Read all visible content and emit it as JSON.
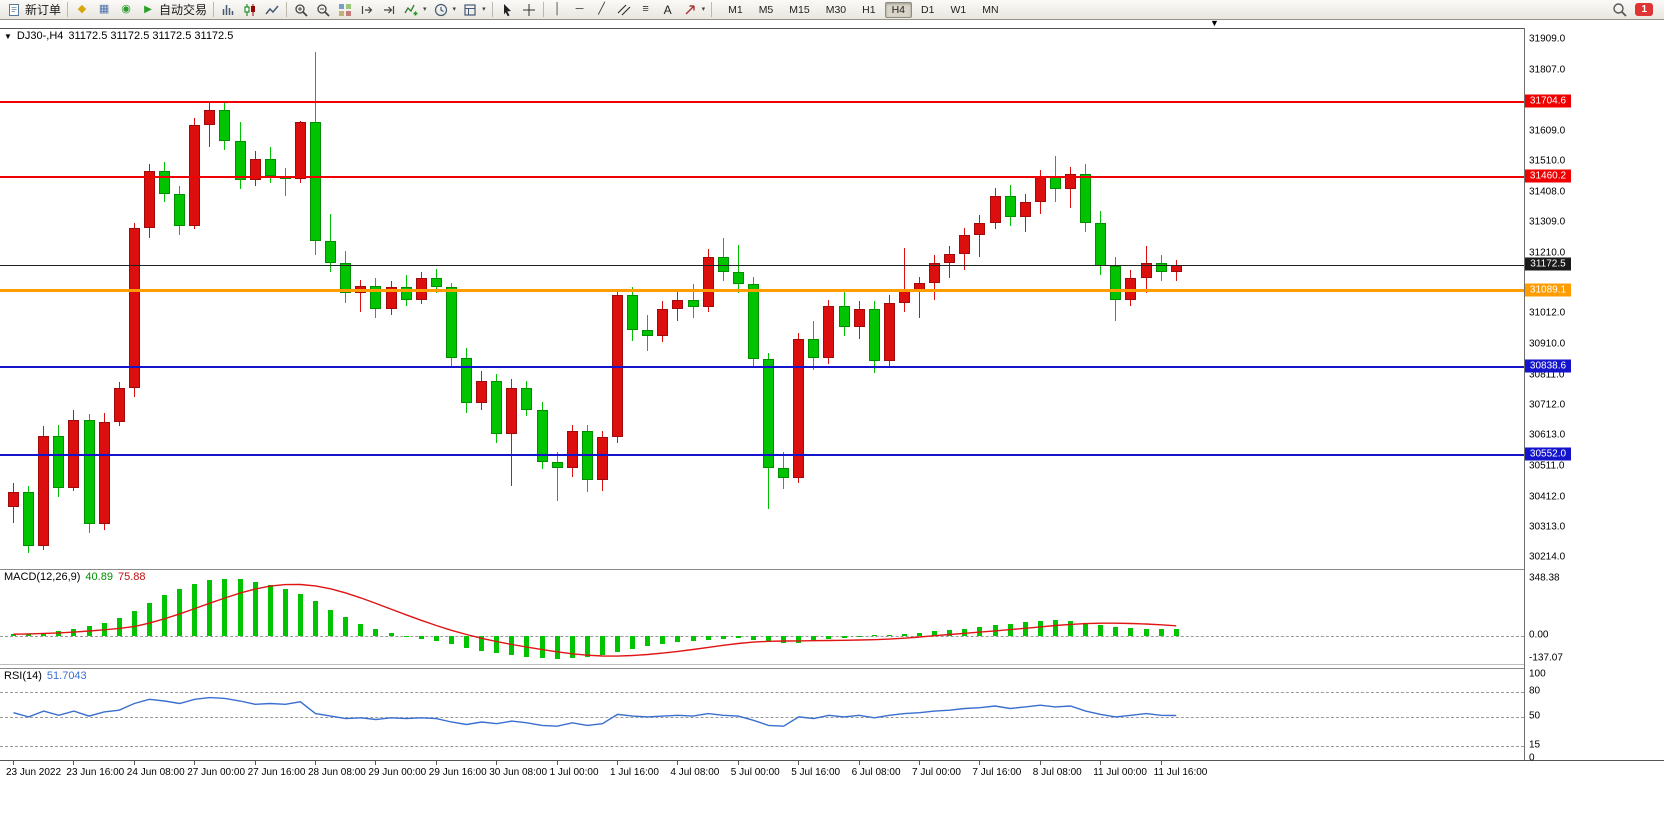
{
  "toolbar": {
    "new_order_label": "新订单",
    "autotrading_label": "自动交易",
    "timeframes": [
      "M1",
      "M5",
      "M15",
      "M30",
      "H1",
      "H4",
      "D1",
      "W1",
      "MN"
    ],
    "active_timeframe": "H4",
    "notification_count": "1"
  },
  "icons": {
    "title_marker": "▼",
    "shift_marker": "▼",
    "caret": "▾",
    "market_watch": "◆",
    "data_window": "▦",
    "navigator": "◉",
    "autotrading_play": "▶",
    "vline": "│",
    "hline": "─",
    "trendline": "╱",
    "fibonacci": "≡",
    "text_tool": "A"
  },
  "chart": {
    "title_symbol": "DJ30-,H4",
    "title_ohlc": "31172.5 31172.5 31172.5 31172.5"
  },
  "indicators": {
    "macd_name": "MACD(12,26,9)",
    "macd_main": "40.89",
    "macd_signal": "75.88",
    "rsi_name": "RSI(14)",
    "rsi_value": "51.7043"
  },
  "chart_data": {
    "type": "candlestick",
    "title": "DJ30-,H4",
    "symbol": "DJ30-",
    "timeframe": "H4",
    "up_color": "#dd0e0e",
    "down_color": "#00c400",
    "view_range": [
      30185,
      31945
    ],
    "price_ticks": [
      31909.0,
      31807.0,
      31609.0,
      31510.0,
      31408.0,
      31309.0,
      31210.0,
      31012.0,
      30910.0,
      30811.0,
      30712.0,
      30613.0,
      30511.0,
      30412.0,
      30313.0,
      30214.0
    ],
    "levels": [
      {
        "price": 31704.6,
        "color": "#f00000",
        "tag_bg": "#f00000",
        "thickness": 2
      },
      {
        "price": 31460.2,
        "color": "#f00000",
        "tag_bg": "#f00000",
        "thickness": 2
      },
      {
        "price": 31089.1,
        "color": "#ff9c00",
        "tag_bg": "#ff9c00",
        "thickness": 3
      },
      {
        "price": 30838.6,
        "color": "#1414cd",
        "tag_bg": "#1414cd",
        "thickness": 2
      },
      {
        "price": 30552.0,
        "color": "#1414cd",
        "tag_bg": "#1414cd",
        "thickness": 2
      }
    ],
    "current_price": {
      "price": 31172.5,
      "color": "#222222",
      "tag_bg": "#1a1a1a"
    },
    "candles": [
      [
        30380,
        30460,
        30330,
        30430
      ],
      [
        30430,
        30450,
        30230,
        30255
      ],
      [
        30255,
        30645,
        30240,
        30615
      ],
      [
        30615,
        30650,
        30415,
        30445
      ],
      [
        30445,
        30700,
        30435,
        30665
      ],
      [
        30665,
        30685,
        30295,
        30325
      ],
      [
        30325,
        30690,
        30305,
        30660
      ],
      [
        30660,
        30790,
        30645,
        30770
      ],
      [
        30770,
        31310,
        30740,
        31295
      ],
      [
        31295,
        31505,
        31260,
        31480
      ],
      [
        31480,
        31510,
        31380,
        31405
      ],
      [
        31405,
        31430,
        31270,
        31300
      ],
      [
        31300,
        31655,
        31290,
        31630
      ],
      [
        31630,
        31705,
        31560,
        31680
      ],
      [
        31680,
        31710,
        31550,
        31580
      ],
      [
        31580,
        31640,
        31420,
        31450
      ],
      [
        31450,
        31545,
        31430,
        31520
      ],
      [
        31520,
        31560,
        31440,
        31465
      ],
      [
        31465,
        31490,
        31400,
        31455
      ],
      [
        31455,
        31645,
        31440,
        31640
      ],
      [
        31640,
        31870,
        31205,
        31250
      ],
      [
        31250,
        31340,
        31150,
        31180
      ],
      [
        31180,
        31220,
        31050,
        31080
      ],
      [
        31080,
        31125,
        31020,
        31105
      ],
      [
        31105,
        31130,
        31000,
        31030
      ],
      [
        31030,
        31120,
        31010,
        31100
      ],
      [
        31100,
        31140,
        31040,
        31060
      ],
      [
        31060,
        31150,
        31045,
        31130
      ],
      [
        31130,
        31160,
        31080,
        31100
      ],
      [
        31100,
        31115,
        30840,
        30870
      ],
      [
        30870,
        30900,
        30690,
        30720
      ],
      [
        30720,
        30825,
        30700,
        30795
      ],
      [
        30795,
        30815,
        30590,
        30620
      ],
      [
        30620,
        30800,
        30450,
        30770
      ],
      [
        30770,
        30795,
        30680,
        30700
      ],
      [
        30700,
        30725,
        30505,
        30530
      ],
      [
        30530,
        30560,
        30400,
        30510
      ],
      [
        30510,
        30650,
        30480,
        30630
      ],
      [
        30630,
        30650,
        30430,
        30470
      ],
      [
        30470,
        30630,
        30435,
        30610
      ],
      [
        30610,
        31095,
        30590,
        31075
      ],
      [
        31075,
        31100,
        30925,
        30960
      ],
      [
        30960,
        31010,
        30890,
        30940
      ],
      [
        30940,
        31055,
        30920,
        31030
      ],
      [
        31030,
        31085,
        30990,
        31060
      ],
      [
        31060,
        31110,
        31000,
        31035
      ],
      [
        31035,
        31225,
        31020,
        31200
      ],
      [
        31200,
        31260,
        31120,
        31150
      ],
      [
        31150,
        31240,
        31080,
        31110
      ],
      [
        31110,
        31135,
        30840,
        30865
      ],
      [
        30865,
        30885,
        30375,
        30510
      ],
      [
        30510,
        30560,
        30440,
        30475
      ],
      [
        30475,
        30950,
        30460,
        30930
      ],
      [
        30930,
        30990,
        30830,
        30870
      ],
      [
        30870,
        31060,
        30850,
        31040
      ],
      [
        31040,
        31085,
        30940,
        30970
      ],
      [
        30970,
        31055,
        30930,
        31030
      ],
      [
        31030,
        31055,
        30820,
        30860
      ],
      [
        30860,
        31075,
        30840,
        31050
      ],
      [
        31050,
        31230,
        31020,
        31090
      ],
      [
        31090,
        31135,
        31000,
        31115
      ],
      [
        31115,
        31205,
        31060,
        31180
      ],
      [
        31180,
        31235,
        31130,
        31210
      ],
      [
        31210,
        31295,
        31155,
        31270
      ],
      [
        31270,
        31335,
        31200,
        31310
      ],
      [
        31310,
        31425,
        31290,
        31400
      ],
      [
        31400,
        31435,
        31300,
        31330
      ],
      [
        31330,
        31405,
        31280,
        31380
      ],
      [
        31380,
        31485,
        31340,
        31460
      ],
      [
        31460,
        31530,
        31380,
        31420
      ],
      [
        31420,
        31495,
        31360,
        31470
      ],
      [
        31470,
        31505,
        31280,
        31310
      ],
      [
        31310,
        31350,
        31140,
        31170
      ],
      [
        31170,
        31200,
        30990,
        31060
      ],
      [
        31060,
        31155,
        31040,
        31130
      ],
      [
        31130,
        31235,
        31080,
        31180
      ],
      [
        31180,
        31205,
        31120,
        31150
      ],
      [
        31150,
        31190,
        31120,
        31172.5
      ]
    ],
    "time_labels": [
      {
        "i": 0,
        "t": "23 Jun 2022"
      },
      {
        "i": 4,
        "t": "23 Jun 16:00"
      },
      {
        "i": 8,
        "t": "24 Jun 08:00"
      },
      {
        "i": 12,
        "t": "27 Jun 00:00"
      },
      {
        "i": 16,
        "t": "27 Jun 16:00"
      },
      {
        "i": 20,
        "t": "28 Jun 08:00"
      },
      {
        "i": 24,
        "t": "29 Jun 00:00"
      },
      {
        "i": 28,
        "t": "29 Jun 16:00"
      },
      {
        "i": 32,
        "t": "30 Jun 08:00"
      },
      {
        "i": 36,
        "t": "1 Jul 00:00"
      },
      {
        "i": 40,
        "t": "1 Jul 16:00"
      },
      {
        "i": 44,
        "t": "4 Jul 08:00"
      },
      {
        "i": 48,
        "t": "5 Jul 00:00"
      },
      {
        "i": 52,
        "t": "5 Jul 16:00"
      },
      {
        "i": 56,
        "t": "6 Jul 08:00"
      },
      {
        "i": 60,
        "t": "7 Jul 00:00"
      },
      {
        "i": 64,
        "t": "7 Jul 16:00"
      },
      {
        "i": 68,
        "t": "8 Jul 08:00"
      },
      {
        "i": 72,
        "t": "11 Jul 00:00"
      },
      {
        "i": 76,
        "t": "11 Jul 16:00"
      }
    ],
    "macd": {
      "label": "MACD(12,26,9) 40.89 75.88",
      "histogram_color": "#00c400",
      "signal_color": "#e01414",
      "range": [
        -180,
        400
      ],
      "axis": [
        {
          "v": 348.38,
          "t": "348.38"
        },
        {
          "v": 0,
          "t": "0.00"
        },
        {
          "v": -137.07,
          "t": "-137.07"
        }
      ],
      "values": [
        12,
        16,
        22,
        30,
        45,
        62,
        82,
        108,
        150,
        200,
        248,
        288,
        318,
        338,
        348,
        344,
        330,
        310,
        284,
        254,
        210,
        160,
        115,
        75,
        45,
        20,
        2,
        -14,
        -30,
        -50,
        -70,
        -90,
        -104,
        -114,
        -124,
        -131,
        -137,
        -134,
        -127,
        -114,
        -95,
        -75,
        -60,
        -48,
        -38,
        -30,
        -22,
        -15,
        -12,
        -20,
        -34,
        -44,
        -40,
        -30,
        -18,
        -8,
        0,
        5,
        10,
        16,
        22,
        30,
        38,
        46,
        55,
        65,
        75,
        85,
        92,
        95,
        90,
        80,
        68,
        58,
        50,
        44,
        42,
        40.89
      ]
    },
    "rsi": {
      "label": "RSI(14) 51.7043",
      "line_color": "#3a6fd0",
      "range": [
        0,
        107
      ],
      "levels": [
        80,
        50,
        15
      ],
      "axis": [
        {
          "v": 100,
          "t": "100"
        },
        {
          "v": 80,
          "t": "80"
        },
        {
          "v": 50,
          "t": "50"
        },
        {
          "v": 15,
          "t": "15"
        },
        {
          "v": 0,
          "t": "0"
        }
      ],
      "values": [
        55,
        50,
        57,
        52,
        57,
        51,
        56,
        58,
        66,
        71,
        69,
        66,
        71,
        73,
        72,
        69,
        65,
        66,
        65,
        68,
        54,
        51,
        48,
        49,
        47,
        49,
        48,
        49,
        48,
        44,
        41,
        44,
        42,
        45,
        43,
        40,
        39,
        43,
        40,
        42,
        53,
        51,
        50,
        51,
        52,
        51,
        54,
        52,
        51,
        46,
        40,
        39,
        50,
        48,
        52,
        50,
        52,
        49,
        52,
        54,
        55,
        57,
        58,
        60,
        61,
        63,
        60,
        62,
        64,
        62,
        63,
        57,
        53,
        50,
        52,
        54,
        52,
        51.7
      ]
    }
  }
}
